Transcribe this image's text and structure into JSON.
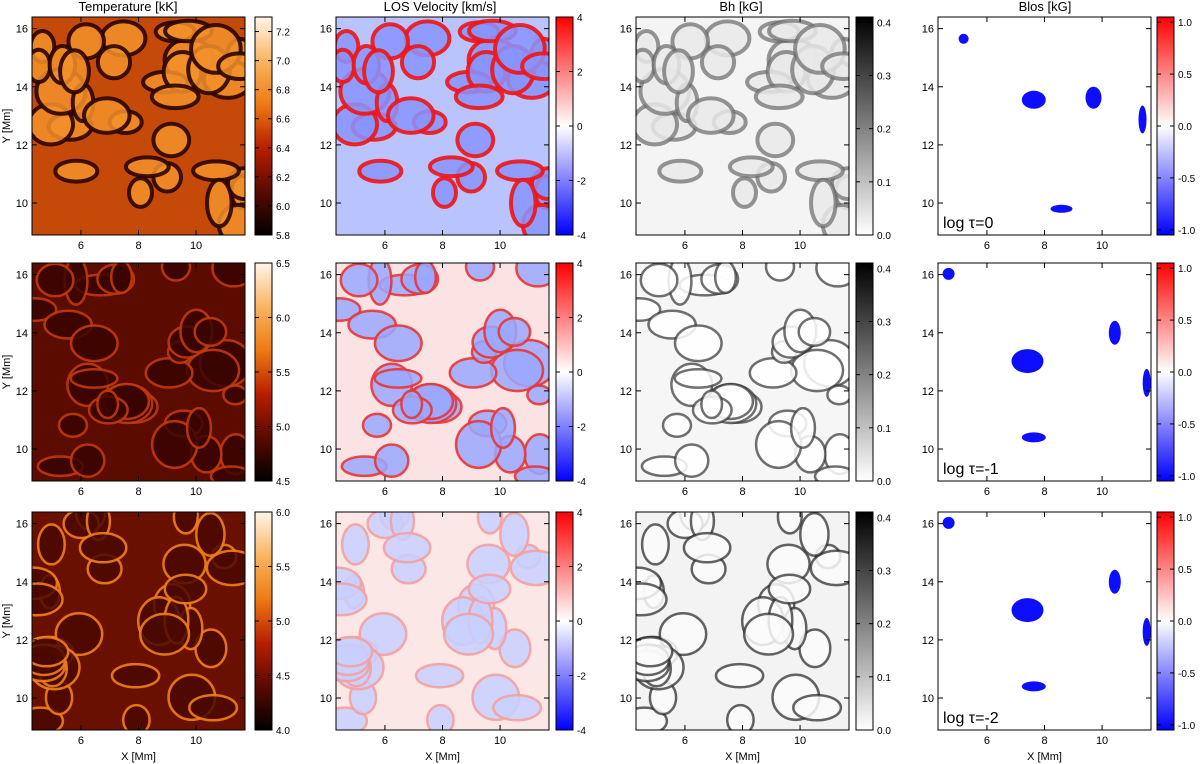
{
  "figure": {
    "column_titles": [
      "Temperature [kK]",
      "LOS Velocity [km/s]",
      "Bh [kG]",
      "Blos [kG]"
    ],
    "row_labels": [
      "log τ=0",
      "log τ=-1",
      "log τ=-2"
    ],
    "xlabel": "X [Mm]",
    "ylabel": "Y [Mm]"
  },
  "chart_data": {
    "type": "heatmap",
    "title": "",
    "xlabel": "X [Mm]",
    "ylabel": "Y [Mm]",
    "x_range_mm": [
      4.3,
      11.7
    ],
    "y_range_mm": [
      8.9,
      16.4
    ],
    "x_ticks": [
      6,
      8,
      10
    ],
    "y_ticks": [
      10,
      12,
      14,
      16
    ],
    "columns": [
      {
        "name": "Temperature [kK]",
        "colormap": "black-red-orange-white",
        "colors": [
          "#000000",
          "#5a0a00",
          "#b81e00",
          "#ee7a12",
          "#f9b562",
          "#fff5e8"
        ]
      },
      {
        "name": "LOS Velocity [km/s]",
        "colormap": "blue-white-red",
        "colors": [
          "#0000ff",
          "#ffffff",
          "#ff0000"
        ]
      },
      {
        "name": "Bh [kG]",
        "colormap": "white-black",
        "colors": [
          "#ffffff",
          "#000000"
        ]
      },
      {
        "name": "Blos [kG]",
        "colormap": "blue-white-red",
        "colors": [
          "#0000ff",
          "#ffffff",
          "#ff0000"
        ]
      }
    ],
    "rows": [
      {
        "label": "log τ=0",
        "colorbar_ranges": [
          [
            5.8,
            7.3
          ],
          [
            -4,
            4
          ],
          [
            0,
            0.41
          ],
          [
            -1.05,
            1.05
          ]
        ],
        "colorbar_ticks": [
          [
            "5.8",
            "6.0",
            "6.2",
            "6.4",
            "6.6",
            "6.8",
            "7.0",
            "7.2"
          ],
          [
            "-4",
            "-2",
            "0",
            "2",
            "4"
          ],
          [
            "0.0",
            "0.1",
            "0.2",
            "0.3",
            "0.4"
          ],
          [
            "-1.0",
            "-0.5",
            "0.0",
            "0.5",
            "1.0"
          ]
        ]
      },
      {
        "label": "log τ=-1",
        "colorbar_ranges": [
          [
            4.5,
            6.5
          ],
          [
            -4,
            4
          ],
          [
            0,
            0.41
          ],
          [
            -1.05,
            1.05
          ]
        ],
        "colorbar_ticks": [
          [
            "4.5",
            "5.0",
            "5.5",
            "6.0",
            "6.5"
          ],
          [
            "-4",
            "-2",
            "0",
            "2",
            "4"
          ],
          [
            "0.0",
            "0.1",
            "0.2",
            "0.3",
            "0.4"
          ],
          [
            "-1.0",
            "-0.5",
            "0.0",
            "0.5",
            "1.0"
          ]
        ]
      },
      {
        "label": "log τ=-2",
        "colorbar_ranges": [
          [
            4.0,
            6.0
          ],
          [
            -4,
            4
          ],
          [
            0,
            0.41
          ],
          [
            -1.05,
            1.05
          ]
        ],
        "colorbar_ticks": [
          [
            "4.0",
            "4.5",
            "5.0",
            "5.5",
            "6.0"
          ],
          [
            "-4",
            "-2",
            "0",
            "2",
            "4"
          ],
          [
            "0.0",
            "0.1",
            "0.2",
            "0.3",
            "0.4"
          ],
          [
            "-1.0",
            "-0.5",
            "0.0",
            "0.5",
            "1.0"
          ]
        ]
      }
    ]
  }
}
